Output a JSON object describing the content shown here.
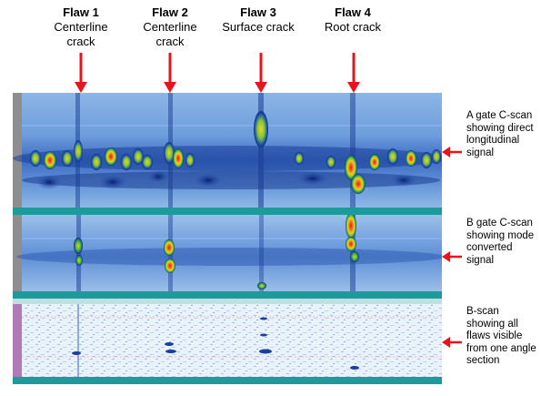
{
  "flaws": [
    {
      "title": "Flaw 1",
      "subtitle": "Centerline crack"
    },
    {
      "title": "Flaw 2",
      "subtitle": "Centerline crack"
    },
    {
      "title": "Flaw 3",
      "subtitle": "Surface crack"
    },
    {
      "title": "Flaw 4",
      "subtitle": "Root crack"
    }
  ],
  "scans": [
    {
      "label": "A gate C-scan showing direct longitudinal signal"
    },
    {
      "label": "B gate C-scan showing mode converted signal"
    },
    {
      "label": "B-scan showing all flaws visible from one angle section"
    }
  ],
  "colors": {
    "arrow": "#e8141b",
    "scan_background": "#2b58b8",
    "scan_light": "#cfe3f6",
    "indication_hot": "#e11a1a",
    "indication_warm": "#f4d21a",
    "indication_mid": "#3fb34b",
    "strip": "#1f9a9a",
    "ruler": "#8e8e8e",
    "bscan_ruler": "#b07ab7"
  }
}
